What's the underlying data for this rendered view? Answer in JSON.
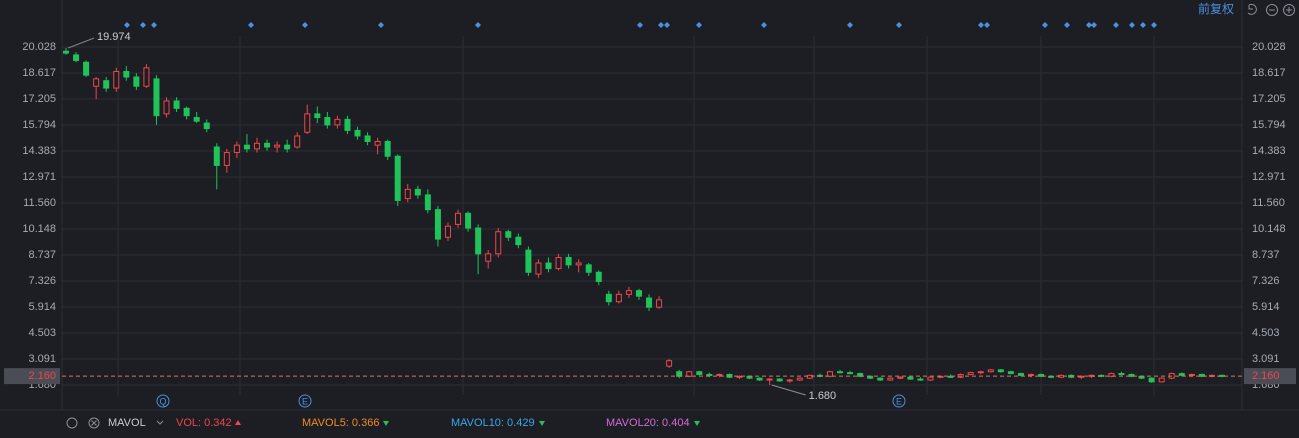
{
  "chart_data": {
    "type": "candlestick",
    "ylim": [
      1.2,
      20.6
    ],
    "yticks": [
      {
        "value": 1.68,
        "label": "1.680"
      },
      3.091,
      4.503,
      5.914,
      7.326,
      8.737,
      10.148,
      {
        "value": 11.56,
        "label": "11.560"
      },
      12.971,
      14.383,
      15.794,
      17.205,
      18.617,
      20.028
    ],
    "grid": true,
    "up_color": "#f0454a",
    "down_color": "#1fc35a",
    "series": [
      {
        "name": "K",
        "values": [
          [
            19.8,
            19.974,
            19.6,
            19.7
          ],
          [
            19.6,
            19.75,
            19.2,
            19.3
          ],
          [
            19.2,
            19.3,
            18.4,
            18.5
          ],
          [
            17.9,
            18.4,
            17.2,
            18.3
          ],
          [
            18.2,
            18.4,
            17.6,
            17.8
          ],
          [
            17.8,
            18.9,
            17.6,
            18.7
          ],
          [
            18.7,
            19.0,
            18.2,
            18.4
          ],
          [
            18.4,
            18.6,
            17.7,
            17.9
          ],
          [
            17.9,
            19.1,
            17.8,
            18.9
          ],
          [
            18.3,
            18.5,
            15.8,
            16.3
          ],
          [
            16.4,
            17.3,
            16.2,
            17.1
          ],
          [
            17.1,
            17.3,
            16.5,
            16.7
          ],
          [
            16.7,
            16.8,
            16.1,
            16.3
          ],
          [
            16.2,
            16.5,
            15.9,
            16.0
          ],
          [
            15.9,
            16.1,
            15.4,
            15.6
          ],
          [
            14.6,
            14.8,
            12.3,
            13.6
          ],
          [
            13.6,
            14.5,
            13.2,
            14.3
          ],
          [
            14.3,
            14.9,
            14.0,
            14.7
          ],
          [
            14.7,
            15.3,
            14.3,
            14.5
          ],
          [
            14.5,
            15.1,
            14.3,
            14.8
          ],
          [
            14.8,
            15.0,
            14.4,
            14.6
          ],
          [
            14.6,
            14.9,
            14.3,
            14.7
          ],
          [
            14.7,
            15.0,
            14.3,
            14.5
          ],
          [
            14.6,
            15.4,
            14.5,
            15.2
          ],
          [
            15.4,
            16.9,
            15.3,
            16.4
          ],
          [
            16.4,
            16.8,
            15.9,
            16.2
          ],
          [
            16.2,
            16.5,
            15.6,
            15.8
          ],
          [
            15.8,
            16.3,
            15.6,
            16.1
          ],
          [
            16.1,
            16.3,
            15.3,
            15.5
          ],
          [
            15.5,
            15.7,
            15.0,
            15.2
          ],
          [
            15.2,
            15.4,
            14.7,
            14.9
          ],
          [
            14.7,
            15.1,
            14.2,
            14.9
          ],
          [
            14.9,
            15.0,
            13.9,
            14.1
          ],
          [
            14.1,
            14.2,
            11.4,
            11.7
          ],
          [
            11.8,
            12.6,
            11.6,
            12.3
          ],
          [
            12.3,
            12.5,
            11.8,
            12.0
          ],
          [
            12.0,
            12.3,
            11.0,
            11.2
          ],
          [
            11.2,
            11.4,
            9.2,
            9.6
          ],
          [
            9.7,
            10.5,
            9.5,
            10.3
          ],
          [
            10.4,
            11.2,
            10.2,
            11.0
          ],
          [
            11.0,
            11.1,
            10.0,
            10.2
          ],
          [
            10.2,
            10.4,
            7.7,
            8.8
          ],
          [
            8.4,
            9.0,
            8.0,
            8.8
          ],
          [
            8.8,
            10.2,
            8.6,
            10.0
          ],
          [
            10.0,
            10.1,
            9.5,
            9.7
          ],
          [
            9.7,
            9.9,
            9.1,
            9.3
          ],
          [
            9.0,
            9.2,
            7.6,
            7.8
          ],
          [
            7.7,
            8.5,
            7.5,
            8.3
          ],
          [
            8.3,
            8.6,
            7.8,
            8.0
          ],
          [
            8.0,
            8.8,
            7.9,
            8.6
          ],
          [
            8.6,
            8.8,
            8.0,
            8.2
          ],
          [
            8.2,
            8.5,
            7.8,
            8.3
          ],
          [
            8.2,
            8.3,
            7.6,
            7.8
          ],
          [
            7.8,
            7.9,
            7.1,
            7.3
          ],
          [
            6.6,
            6.8,
            6.0,
            6.2
          ],
          [
            6.2,
            6.8,
            6.1,
            6.6
          ],
          [
            6.6,
            7.0,
            6.4,
            6.8
          ],
          [
            6.8,
            6.9,
            6.3,
            6.5
          ],
          [
            6.4,
            6.6,
            5.7,
            5.9
          ],
          [
            5.9,
            6.5,
            5.8,
            6.3
          ],
          [
            2.7,
            3.1,
            2.6,
            3.0
          ],
          [
            2.4,
            2.5,
            2.05,
            2.15
          ],
          [
            2.15,
            2.45,
            2.1,
            2.4
          ],
          [
            2.4,
            2.45,
            2.2,
            2.25
          ],
          [
            2.25,
            2.35,
            2.1,
            2.2
          ],
          [
            2.2,
            2.3,
            2.1,
            2.25
          ],
          [
            2.25,
            2.3,
            2.05,
            2.1
          ],
          [
            2.1,
            2.2,
            2.0,
            2.15
          ],
          [
            2.15,
            2.2,
            2.0,
            2.05
          ],
          [
            2.05,
            2.1,
            1.9,
            1.95
          ],
          [
            1.95,
            2.05,
            1.68,
            2.0
          ],
          [
            2.0,
            2.05,
            1.85,
            1.9
          ],
          [
            1.9,
            2.0,
            1.8,
            1.95
          ],
          [
            1.95,
            2.1,
            1.9,
            2.05
          ],
          [
            2.05,
            2.25,
            2.0,
            2.2
          ],
          [
            2.2,
            2.3,
            2.1,
            2.15
          ],
          [
            2.15,
            2.45,
            2.1,
            2.4
          ],
          [
            2.4,
            2.5,
            2.3,
            2.35
          ],
          [
            2.35,
            2.45,
            2.25,
            2.3
          ],
          [
            2.3,
            2.35,
            2.1,
            2.15
          ],
          [
            2.15,
            2.2,
            2.0,
            2.05
          ],
          [
            2.05,
            2.1,
            1.9,
            1.95
          ],
          [
            1.95,
            2.1,
            1.9,
            2.05
          ],
          [
            2.05,
            2.15,
            2.0,
            2.1
          ],
          [
            2.1,
            2.15,
            1.95,
            2.0
          ],
          [
            2.0,
            2.1,
            1.9,
            1.95
          ],
          [
            1.95,
            2.15,
            1.9,
            2.1
          ],
          [
            2.1,
            2.2,
            2.05,
            2.15
          ],
          [
            2.15,
            2.25,
            2.05,
            2.1
          ],
          [
            2.1,
            2.3,
            2.05,
            2.25
          ],
          [
            2.25,
            2.4,
            2.2,
            2.35
          ],
          [
            2.35,
            2.45,
            2.25,
            2.4
          ],
          [
            2.4,
            2.55,
            2.35,
            2.5
          ],
          [
            2.5,
            2.55,
            2.35,
            2.4
          ],
          [
            2.4,
            2.45,
            2.25,
            2.3
          ],
          [
            2.3,
            2.35,
            2.15,
            2.2
          ],
          [
            2.2,
            2.3,
            2.1,
            2.25
          ],
          [
            2.25,
            2.3,
            2.1,
            2.15
          ],
          [
            2.15,
            2.2,
            2.05,
            2.1
          ],
          [
            2.1,
            2.25,
            2.05,
            2.2
          ],
          [
            2.2,
            2.25,
            2.05,
            2.1
          ],
          [
            2.1,
            2.2,
            2.0,
            2.15
          ],
          [
            2.15,
            2.25,
            2.05,
            2.2
          ],
          [
            2.2,
            2.25,
            2.1,
            2.15
          ],
          [
            2.15,
            2.35,
            2.1,
            2.3
          ],
          [
            2.3,
            2.4,
            2.2,
            2.25
          ],
          [
            2.25,
            2.3,
            2.1,
            2.15
          ],
          [
            2.15,
            2.2,
            2.0,
            2.05
          ],
          [
            2.05,
            2.1,
            1.8,
            1.85
          ],
          [
            1.85,
            2.1,
            1.8,
            2.05
          ],
          [
            2.05,
            2.35,
            2.0,
            2.3
          ],
          [
            2.3,
            2.35,
            2.15,
            2.2
          ],
          [
            2.2,
            2.3,
            2.1,
            2.25
          ],
          [
            2.25,
            2.3,
            2.1,
            2.15
          ],
          [
            2.15,
            2.25,
            2.1,
            2.2
          ],
          [
            2.2,
            2.25,
            2.1,
            2.16
          ]
        ]
      }
    ],
    "high_label": "19.974",
    "low_label": "1.680",
    "last_price": {
      "value": 2.16,
      "label": "2.160"
    },
    "adjust_mode": "前复权",
    "events": [
      "Q",
      "E",
      "E"
    ],
    "indicator": "MAVOL",
    "indicator_values": [
      {
        "label": "VOL: 0.342",
        "color": "#f0454a"
      },
      {
        "label": "MAVOL5: 0.366",
        "color": "#f08a24"
      },
      {
        "label": "MAVOL10: 0.429",
        "color": "#3aa7e6"
      },
      {
        "label": "MAVOL20: 0.404",
        "color": "#d76ad9"
      }
    ]
  }
}
